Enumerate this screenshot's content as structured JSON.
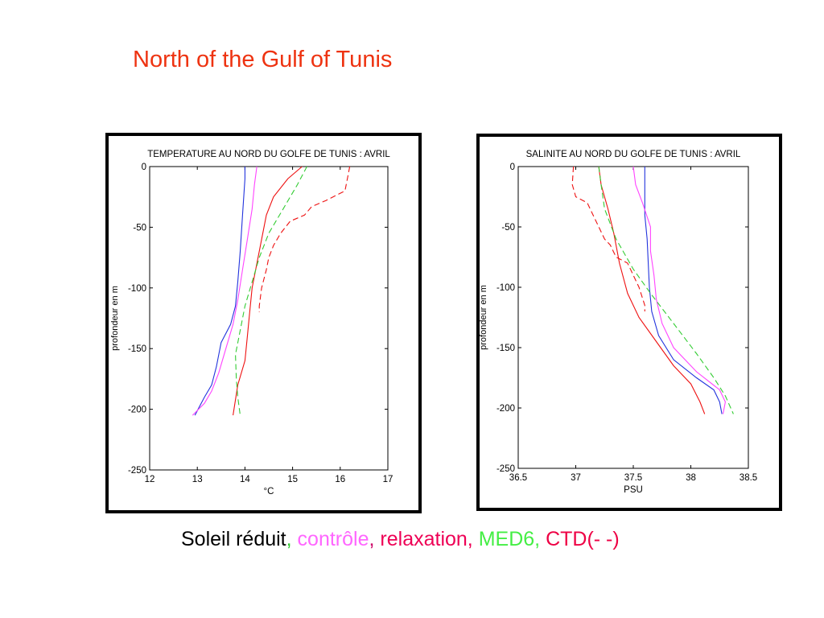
{
  "slide": {
    "title": "North of the Gulf of Tunis"
  },
  "legend": {
    "items": [
      {
        "text": "Soleil réduit",
        "color": "#000000"
      },
      {
        "text": ", ",
        "color": "#33cc33"
      },
      {
        "text": "contrôle",
        "color": "#ff66ff"
      },
      {
        "text": ", ",
        "color": "#cc0066"
      },
      {
        "text": "relaxation, ",
        "color": "#ee0055"
      },
      {
        "text": "MED6, ",
        "color": "#44ee44"
      },
      {
        "text": "CTD(- -)",
        "color": "#ee0044"
      }
    ]
  },
  "chart_data": [
    {
      "type": "line",
      "title": "TEMPERATURE AU NORD DU GOLFE DE TUNIS : AVRIL",
      "xlabel": "°C",
      "ylabel": "profondeur en m",
      "xlim": [
        12,
        17
      ],
      "ylim": [
        -250,
        0
      ],
      "xticks": [
        12,
        13,
        14,
        15,
        16,
        17
      ],
      "yticks": [
        0,
        -50,
        -100,
        -150,
        -200,
        -250
      ],
      "grid": false,
      "series": [
        {
          "key": "soleil_reduit",
          "color": "#2233dd",
          "dash": false,
          "points": [
            [
              14.0,
              0
            ],
            [
              14.0,
              -10
            ],
            [
              13.95,
              -40
            ],
            [
              13.9,
              -70
            ],
            [
              13.85,
              -95
            ],
            [
              13.8,
              -115
            ],
            [
              13.7,
              -130
            ],
            [
              13.5,
              -145
            ],
            [
              13.4,
              -165
            ],
            [
              13.3,
              -180
            ],
            [
              13.15,
              -190
            ],
            [
              12.95,
              -205
            ]
          ]
        },
        {
          "key": "controle",
          "color": "#ff44ff",
          "dash": false,
          "points": [
            [
              14.25,
              0
            ],
            [
              14.2,
              -15
            ],
            [
              14.15,
              -35
            ],
            [
              14.05,
              -60
            ],
            [
              13.95,
              -85
            ],
            [
              13.85,
              -110
            ],
            [
              13.75,
              -130
            ],
            [
              13.6,
              -150
            ],
            [
              13.45,
              -170
            ],
            [
              13.3,
              -185
            ],
            [
              13.15,
              -195
            ],
            [
              12.9,
              -205
            ]
          ]
        },
        {
          "key": "relaxation",
          "color": "#ee1111",
          "dash": false,
          "points": [
            [
              15.2,
              0
            ],
            [
              14.9,
              -10
            ],
            [
              14.6,
              -25
            ],
            [
              14.45,
              -40
            ],
            [
              14.35,
              -60
            ],
            [
              14.25,
              -80
            ],
            [
              14.15,
              -100
            ],
            [
              14.1,
              -120
            ],
            [
              14.05,
              -140
            ],
            [
              14.0,
              -160
            ],
            [
              13.85,
              -180
            ],
            [
              13.75,
              -205
            ]
          ]
        },
        {
          "key": "med6",
          "color": "#33cc33",
          "dash": true,
          "points": [
            [
              15.3,
              0
            ],
            [
              15.1,
              -15
            ],
            [
              14.8,
              -35
            ],
            [
              14.5,
              -55
            ],
            [
              14.3,
              -75
            ],
            [
              14.15,
              -95
            ],
            [
              14.0,
              -115
            ],
            [
              13.9,
              -135
            ],
            [
              13.8,
              -155
            ],
            [
              13.82,
              -175
            ],
            [
              13.85,
              -190
            ],
            [
              13.9,
              -205
            ]
          ]
        },
        {
          "key": "ctd",
          "color": "#ee1111",
          "dash": true,
          "points": [
            [
              16.2,
              0
            ],
            [
              16.15,
              -10
            ],
            [
              16.1,
              -20
            ],
            [
              15.7,
              -28
            ],
            [
              15.4,
              -33
            ],
            [
              15.25,
              -40
            ],
            [
              14.95,
              -45
            ],
            [
              14.75,
              -55
            ],
            [
              14.6,
              -65
            ],
            [
              14.5,
              -75
            ],
            [
              14.45,
              -85
            ],
            [
              14.35,
              -100
            ],
            [
              14.3,
              -115
            ],
            [
              14.3,
              -120
            ]
          ]
        }
      ]
    },
    {
      "type": "line",
      "title": "SALINITE AU NORD DU GOLFE DE TUNIS : AVRIL",
      "xlabel": "PSU",
      "ylabel": "profondeur en m",
      "xlim": [
        36.5,
        38.5
      ],
      "ylim": [
        -250,
        0
      ],
      "xticks": [
        36.5,
        37,
        37.5,
        38,
        38.5
      ],
      "yticks": [
        0,
        -50,
        -100,
        -150,
        -200,
        -250
      ],
      "grid": false,
      "series": [
        {
          "key": "soleil_reduit",
          "color": "#2233dd",
          "dash": false,
          "points": [
            [
              37.6,
              0
            ],
            [
              37.6,
              -20
            ],
            [
              37.6,
              -40
            ],
            [
              37.62,
              -60
            ],
            [
              37.63,
              -80
            ],
            [
              37.64,
              -100
            ],
            [
              37.66,
              -120
            ],
            [
              37.72,
              -140
            ],
            [
              37.85,
              -160
            ],
            [
              38.05,
              -175
            ],
            [
              38.2,
              -185
            ],
            [
              38.25,
              -195
            ],
            [
              38.27,
              -205
            ]
          ]
        },
        {
          "key": "controle",
          "color": "#ff44ff",
          "dash": false,
          "points": [
            [
              37.5,
              0
            ],
            [
              37.52,
              -15
            ],
            [
              37.58,
              -30
            ],
            [
              37.65,
              -50
            ],
            [
              37.65,
              -70
            ],
            [
              37.68,
              -90
            ],
            [
              37.7,
              -110
            ],
            [
              37.75,
              -130
            ],
            [
              37.85,
              -150
            ],
            [
              38.05,
              -170
            ],
            [
              38.25,
              -185
            ],
            [
              38.3,
              -195
            ],
            [
              38.28,
              -205
            ]
          ]
        },
        {
          "key": "relaxation",
          "color": "#ee1111",
          "dash": false,
          "points": [
            [
              37.2,
              0
            ],
            [
              37.22,
              -15
            ],
            [
              37.28,
              -35
            ],
            [
              37.33,
              -55
            ],
            [
              37.38,
              -80
            ],
            [
              37.45,
              -105
            ],
            [
              37.55,
              -125
            ],
            [
              37.7,
              -145
            ],
            [
              37.85,
              -165
            ],
            [
              38.0,
              -180
            ],
            [
              38.08,
              -195
            ],
            [
              38.12,
              -205
            ]
          ]
        },
        {
          "key": "med6",
          "color": "#33cc33",
          "dash": true,
          "points": [
            [
              37.2,
              0
            ],
            [
              37.22,
              -15
            ],
            [
              37.25,
              -35
            ],
            [
              37.35,
              -60
            ],
            [
              37.5,
              -85
            ],
            [
              37.65,
              -105
            ],
            [
              37.85,
              -130
            ],
            [
              38.05,
              -155
            ],
            [
              38.2,
              -175
            ],
            [
              38.3,
              -190
            ],
            [
              38.37,
              -205
            ]
          ]
        },
        {
          "key": "ctd",
          "color": "#ee1111",
          "dash": true,
          "points": [
            [
              36.98,
              0
            ],
            [
              36.97,
              -15
            ],
            [
              37.0,
              -25
            ],
            [
              37.1,
              -30
            ],
            [
              37.15,
              -40
            ],
            [
              37.2,
              -50
            ],
            [
              37.25,
              -60
            ],
            [
              37.3,
              -65
            ],
            [
              37.35,
              -75
            ],
            [
              37.45,
              -80
            ],
            [
              37.5,
              -90
            ],
            [
              37.55,
              -100
            ],
            [
              37.6,
              -115
            ],
            [
              37.6,
              -120
            ]
          ]
        }
      ]
    }
  ]
}
